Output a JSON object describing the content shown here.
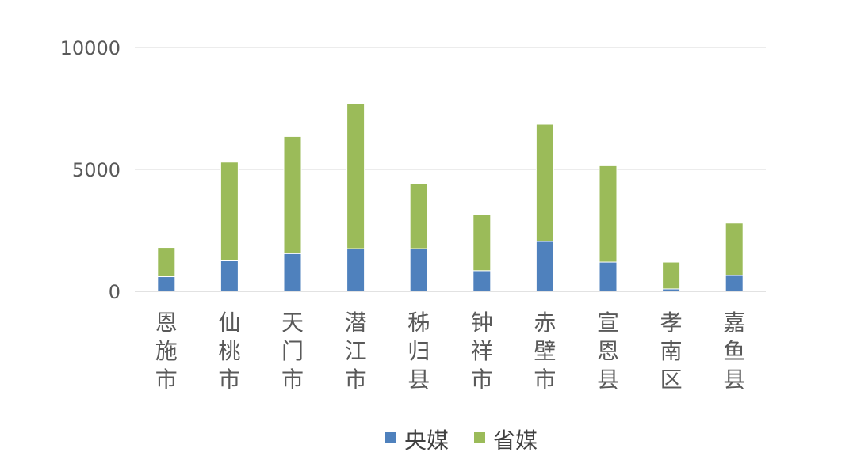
{
  "chart_data": {
    "type": "bar",
    "stacked": true,
    "categories": [
      "恩施市",
      "仙桃市",
      "天门市",
      "潜江市",
      "秭归县",
      "钟祥市",
      "赤壁市",
      "宣恩县",
      "孝南区",
      "嘉鱼县"
    ],
    "series": [
      {
        "name": "央媒",
        "color": "#4f81bd",
        "values": [
          600,
          1250,
          1550,
          1750,
          1750,
          850,
          2050,
          1200,
          100,
          650
        ]
      },
      {
        "name": "省媒",
        "color": "#9bbb59",
        "values": [
          1200,
          4050,
          4800,
          5950,
          2650,
          2300,
          4800,
          3950,
          1100,
          2150
        ]
      }
    ],
    "yticks": [
      "0",
      "5000",
      "10000"
    ],
    "ylim": [
      0,
      10000
    ],
    "grid": true,
    "legend_position": "bottom"
  }
}
